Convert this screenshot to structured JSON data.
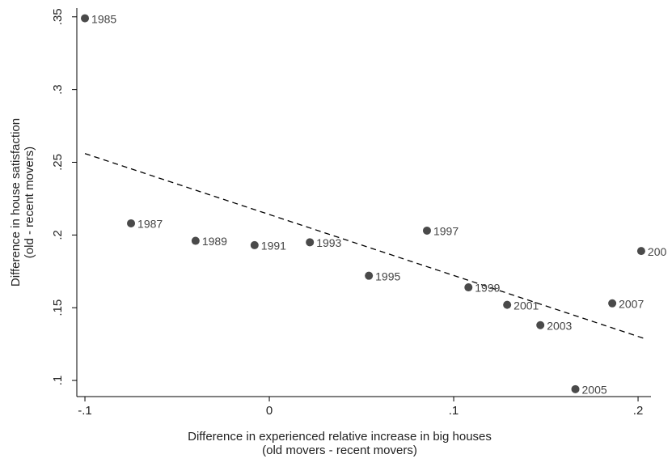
{
  "chart_data": {
    "type": "scatter",
    "x_label": [
      "Difference in experienced relative increase in big houses",
      "(old movers - recent movers)"
    ],
    "y_label": [
      "Difference in house satisfaction",
      "(old - recent movers)"
    ],
    "point_labels": [
      "1985",
      "1987",
      "1989",
      "1991",
      "1993",
      "1995",
      "1997",
      "1999",
      "2001",
      "2003",
      "2005",
      "2007",
      "200"
    ],
    "x": [
      -0.1,
      -0.075,
      -0.04,
      -0.008,
      0.022,
      0.054,
      0.0855,
      0.108,
      0.129,
      0.147,
      0.166,
      0.186,
      0.2017
    ],
    "values": [
      0.349,
      0.208,
      0.196,
      0.193,
      0.195,
      0.172,
      0.203,
      0.164,
      0.152,
      0.138,
      0.094,
      0.153,
      0.189
    ],
    "color": "#4a4a4a",
    "fit": {
      "x": [
        -0.1,
        0.203
      ],
      "y": [
        0.256,
        0.129
      ],
      "color": "#000000",
      "dashed": true
    },
    "xlim": [
      -0.1044,
      0.207
    ],
    "ylim": [
      0.0889,
      0.356
    ],
    "xticks": [
      {
        "value": -0.1,
        "label": "-.1"
      },
      0,
      {
        "value": 0.1,
        "label": ".1"
      },
      {
        "value": 0.2,
        "label": ".2"
      }
    ],
    "yticks": [
      {
        "value": 0.1,
        "label": ".1"
      },
      {
        "value": 0.15,
        "label": ".15"
      },
      {
        "value": 0.2,
        "label": ".2"
      },
      {
        "value": 0.25,
        "label": ".25"
      },
      {
        "value": 0.3,
        "label": ".3"
      },
      {
        "value": 0.35,
        "label": ".35"
      }
    ],
    "grid": false
  }
}
